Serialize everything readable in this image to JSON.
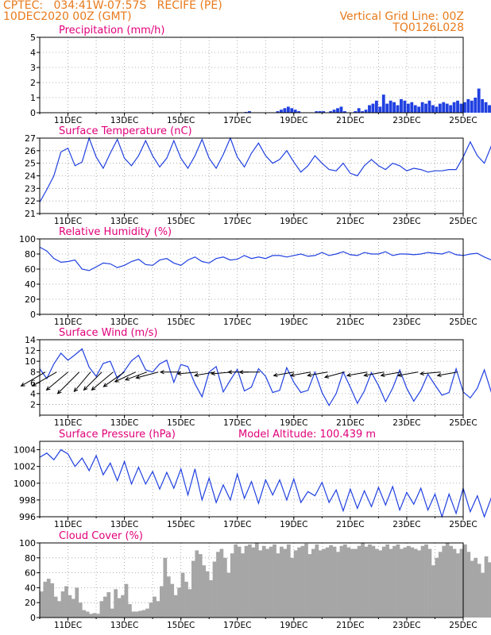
{
  "header": {
    "line1_left": "CPTEC:   034:41W-07:57S   RECIFE (PE)",
    "line2_left": "10DEC2020 00Z (GMT)",
    "line1_right": "Vertical Grid Line: 00Z",
    "line2_right": "TQ0126L028"
  },
  "colors": {
    "header": "#e87a1c",
    "title": "#e0007a",
    "line": "#2040e0",
    "cloud": "#a6a6a6",
    "grid": "#9a9a9a"
  },
  "chart_data": [
    {
      "id": "precip",
      "type": "bar",
      "title": "Precipitation (mm/h)",
      "ylim": [
        0,
        5
      ],
      "yticks": [
        "0",
        "1",
        "2",
        "3",
        "4",
        "5"
      ],
      "xticks": [
        "11DEC",
        "13DEC",
        "15DEC",
        "17DEC",
        "19DEC",
        "21DEC",
        "23DEC",
        "25DEC"
      ],
      "xlim_days": [
        0,
        15
      ],
      "samples_per_day": 8,
      "values": [
        0,
        0,
        0,
        0,
        0,
        0,
        0,
        0,
        0,
        0,
        0,
        0,
        0,
        0,
        0,
        0,
        0,
        0,
        0,
        0,
        0,
        0,
        0,
        0,
        0,
        0,
        0,
        0,
        0,
        0,
        0.05,
        0.1,
        0,
        0,
        0,
        0,
        0,
        0,
        0,
        0.1,
        0.2,
        0.3,
        0.4,
        0.3,
        0.2,
        0.1,
        0,
        0,
        0,
        0,
        0.1,
        0.1,
        0.1,
        0,
        0.1,
        0.2,
        0.3,
        0.4,
        0.1,
        0,
        0,
        0.1,
        0.3,
        0.1,
        0.2,
        0.5,
        0.6,
        0.8,
        0.4,
        1.2,
        0.6,
        0.8,
        0.7,
        0.5,
        0.9,
        0.8,
        0.6,
        0.7,
        0.5,
        0.4,
        0.7,
        0.6,
        0.8,
        0.5,
        0.4,
        0.6,
        0.7,
        0.6,
        0.5,
        0.7,
        0.8,
        0.6,
        0.7,
        0.9,
        0.8,
        1.0,
        1.6,
        0.9,
        0.7,
        0.5,
        0.4,
        0.3,
        0.2,
        0.3,
        0.6,
        0.3,
        0.6,
        0.5,
        0.4,
        0.7,
        0.9,
        1.4,
        0.6,
        0.4,
        0.5,
        0.3,
        0.2,
        0.1,
        0.2,
        0.1,
        0.3,
        0.5,
        0.4,
        0.5,
        0.3,
        0.2,
        0.1,
        0.4
      ],
      "start_day": 3.5
    },
    {
      "id": "temp",
      "type": "line",
      "title": "Surface Temperature (nC)",
      "ylim": [
        21,
        27
      ],
      "yticks": [
        "21",
        "22",
        "23",
        "24",
        "25",
        "26",
        "27"
      ],
      "xticks": [
        "11DEC",
        "13DEC",
        "15DEC",
        "17DEC",
        "19DEC",
        "21DEC",
        "23DEC",
        "25DEC"
      ],
      "xlim_days": [
        0,
        15
      ],
      "samples_per_day": 4,
      "values": [
        21.9,
        22.9,
        24.0,
        25.9,
        26.2,
        24.8,
        25.1,
        27.0,
        25.5,
        24.6,
        25.8,
        26.9,
        25.4,
        24.8,
        25.6,
        26.8,
        25.6,
        24.7,
        25.4,
        26.8,
        25.4,
        24.6,
        25.6,
        26.9,
        25.4,
        24.6,
        25.7,
        27.0,
        25.5,
        24.7,
        25.8,
        26.6,
        25.6,
        25.0,
        25.3,
        26.0,
        25.1,
        24.3,
        24.8,
        25.6,
        25.0,
        24.5,
        24.4,
        25.0,
        24.2,
        24.0,
        24.8,
        25.3,
        24.8,
        24.5,
        25.0,
        24.8,
        24.4,
        24.6,
        24.5,
        24.3,
        24.4,
        24.4,
        24.5,
        24.5,
        25.5,
        26.7,
        25.6,
        25.0,
        26.4,
        24.7,
        25.4,
        26.4,
        25.0,
        24.8,
        26.1,
        26.6
      ]
    },
    {
      "id": "rh",
      "type": "line",
      "title": "Relative Humidity (%)",
      "ylim": [
        0,
        100
      ],
      "yticks": [
        "0",
        "20",
        "40",
        "60",
        "80",
        "100"
      ],
      "xticks": [
        "11DEC",
        "13DEC",
        "15DEC",
        "17DEC",
        "19DEC",
        "21DEC",
        "23DEC",
        "25DEC"
      ],
      "xlim_days": [
        0,
        15
      ],
      "samples_per_day": 4,
      "values": [
        89,
        84,
        74,
        69,
        70,
        72,
        60,
        58,
        63,
        68,
        67,
        62,
        65,
        70,
        73,
        66,
        65,
        72,
        74,
        68,
        65,
        72,
        76,
        70,
        68,
        74,
        76,
        72,
        73,
        78,
        74,
        76,
        74,
        78,
        78,
        76,
        78,
        80,
        77,
        78,
        82,
        78,
        80,
        83,
        79,
        78,
        82,
        80,
        80,
        83,
        78,
        80,
        80,
        79,
        80,
        82,
        81,
        80,
        83,
        79,
        78,
        80,
        81,
        76,
        72,
        80,
        76,
        74,
        79,
        73,
        70,
        76,
        74
      ]
    },
    {
      "id": "wind",
      "type": "line",
      "title": "Surface Wind (m/s)",
      "ylim": [
        0,
        14
      ],
      "yticks": [
        "2",
        "4",
        "6",
        "8",
        "10",
        "12",
        "14"
      ],
      "xticks": [
        "11DEC",
        "13DEC",
        "15DEC",
        "17DEC",
        "19DEC",
        "21DEC",
        "23DEC",
        "25DEC"
      ],
      "xlim_days": [
        0,
        15
      ],
      "samples_per_day": 4,
      "values": [
        8.6,
        6.8,
        9.5,
        11.5,
        10.2,
        11.2,
        12.3,
        8.9,
        7.2,
        9.6,
        10.0,
        6.8,
        8.2,
        10.1,
        11.1,
        8.4,
        8.0,
        9.5,
        10.2,
        6.1,
        9.4,
        9.0,
        5.8,
        3.4,
        8.0,
        9.0,
        4.3,
        6.5,
        8.5,
        4.5,
        5.2,
        8.6,
        7.2,
        4.2,
        4.6,
        8.8,
        6.1,
        4.2,
        4.6,
        8.0,
        4.2,
        1.8,
        4.0,
        8.0,
        5.2,
        2.2,
        4.5,
        7.9,
        5.5,
        2.5,
        5.0,
        8.4,
        5.0,
        2.6,
        4.6,
        7.6,
        5.6,
        3.7,
        4.2,
        8.6,
        4.3,
        3.2,
        5.0,
        8.4,
        4.2,
        2.6,
        6.7,
        8.4,
        4.7,
        4.6,
        7.6,
        9.4,
        7.6
      ],
      "barbs": [
        {
          "day": 0.2,
          "speed": 11,
          "from_deg": 120
        },
        {
          "day": 0.6,
          "speed": 11,
          "from_deg": 120
        },
        {
          "day": 1.0,
          "speed": 11,
          "from_deg": 130
        },
        {
          "day": 1.4,
          "speed": 12,
          "from_deg": 135
        },
        {
          "day": 1.8,
          "speed": 10,
          "from_deg": 140
        },
        {
          "day": 2.2,
          "speed": 10,
          "from_deg": 135
        },
        {
          "day": 2.6,
          "speed": 11,
          "from_deg": 130
        },
        {
          "day": 3.0,
          "speed": 10,
          "from_deg": 125
        },
        {
          "day": 3.4,
          "speed": 9,
          "from_deg": 115
        },
        {
          "day": 3.8,
          "speed": 9,
          "from_deg": 110
        },
        {
          "day": 4.2,
          "speed": 9,
          "from_deg": 105
        },
        {
          "day": 5.0,
          "speed": 8,
          "from_deg": 90
        },
        {
          "day": 5.6,
          "speed": 8,
          "from_deg": 95
        },
        {
          "day": 6.2,
          "speed": 8,
          "from_deg": 100
        },
        {
          "day": 6.8,
          "speed": 8,
          "from_deg": 95
        },
        {
          "day": 7.4,
          "speed": 8,
          "from_deg": 90
        },
        {
          "day": 7.8,
          "speed": 8,
          "from_deg": 90
        },
        {
          "day": 9.0,
          "speed": 8,
          "from_deg": 100
        },
        {
          "day": 9.6,
          "speed": 8,
          "from_deg": 100
        },
        {
          "day": 10.2,
          "speed": 8,
          "from_deg": 100
        },
        {
          "day": 10.8,
          "speed": 8,
          "from_deg": 105
        },
        {
          "day": 11.6,
          "speed": 8,
          "from_deg": 100
        },
        {
          "day": 12.2,
          "speed": 8,
          "from_deg": 100
        },
        {
          "day": 12.8,
          "speed": 8,
          "from_deg": 100
        },
        {
          "day": 13.4,
          "speed": 8,
          "from_deg": 100
        },
        {
          "day": 14.2,
          "speed": 8,
          "from_deg": 95
        },
        {
          "day": 14.8,
          "speed": 8,
          "from_deg": 100
        }
      ]
    },
    {
      "id": "pressure",
      "type": "line",
      "title": "Surface Pressure (hPa)",
      "subtitle": "Model Altitude: 100.439 m",
      "ylim": [
        996,
        1005
      ],
      "yticks": [
        "996",
        "998",
        "1000",
        "1002",
        "1004"
      ],
      "xticks": [
        "11DEC",
        "13DEC",
        "15DEC",
        "17DEC",
        "19DEC",
        "21DEC",
        "23DEC",
        "25DEC"
      ],
      "xlim_days": [
        0,
        15
      ],
      "samples_per_day": 4,
      "values": [
        1003.1,
        1003.6,
        1002.8,
        1004.0,
        1003.5,
        1002.0,
        1003.0,
        1001.5,
        1003.3,
        1001.0,
        1002.4,
        1000.3,
        1002.6,
        999.9,
        1001.9,
        999.9,
        1001.4,
        999.3,
        1001.3,
        999.4,
        1001.7,
        998.6,
        1001.7,
        998.0,
        1000.6,
        997.7,
        999.8,
        998.0,
        1001.1,
        998.2,
        1000.2,
        997.6,
        1000.4,
        998.6,
        1000.4,
        998.0,
        1000.5,
        997.7,
        999.0,
        998.5,
        1000.1,
        997.7,
        999.2,
        996.7,
        999.3,
        997.0,
        999.1,
        997.2,
        999.5,
        997.4,
        999.6,
        996.8,
        998.9,
        997.5,
        999.4,
        996.8,
        998.7,
        996.0,
        998.7,
        996.4,
        999.4,
        996.6,
        998.5,
        996.0,
        998.3,
        996.3,
        998.8,
        996.3,
        998.2,
        996.1,
        997.7,
        996.2,
        997.9
      ]
    },
    {
      "id": "cloud",
      "type": "area",
      "title": "Cloud Cover (%)",
      "ylim": [
        0,
        100
      ],
      "yticks": [
        "0",
        "20",
        "40",
        "60",
        "80",
        "100"
      ],
      "xticks": [
        "11DEC",
        "13DEC",
        "15DEC",
        "17DEC",
        "19DEC",
        "21DEC",
        "23DEC",
        "25DEC"
      ],
      "xlim_days": [
        0,
        15
      ],
      "samples_per_day": 8,
      "values": [
        35,
        48,
        52,
        46,
        28,
        22,
        35,
        42,
        30,
        25,
        40,
        20,
        10,
        8,
        5,
        6,
        5,
        22,
        28,
        34,
        12,
        38,
        26,
        30,
        45,
        18,
        8,
        8,
        9,
        10,
        12,
        20,
        28,
        22,
        42,
        80,
        55,
        45,
        30,
        40,
        60,
        48,
        38,
        76,
        90,
        85,
        70,
        62,
        50,
        75,
        88,
        92,
        80,
        60,
        86,
        98,
        95,
        86,
        96,
        98,
        94,
        100,
        90,
        96,
        92,
        95,
        98,
        86,
        95,
        92,
        98,
        80,
        90,
        94,
        96,
        99,
        85,
        92,
        98,
        90,
        92,
        94,
        97,
        95,
        88,
        96,
        98,
        94,
        92,
        92,
        96,
        100,
        95,
        98,
        96,
        92,
        90,
        95,
        98,
        92,
        96,
        98,
        92,
        94,
        96,
        94,
        92,
        90,
        96,
        98,
        92,
        70,
        80,
        88,
        96,
        100,
        96,
        92,
        86,
        92,
        98,
        88,
        76,
        80,
        72,
        60,
        82,
        74,
        62,
        70,
        75,
        58,
        60,
        64,
        42,
        20,
        50,
        76,
        60,
        45,
        40,
        55,
        58,
        20
      ]
    }
  ]
}
